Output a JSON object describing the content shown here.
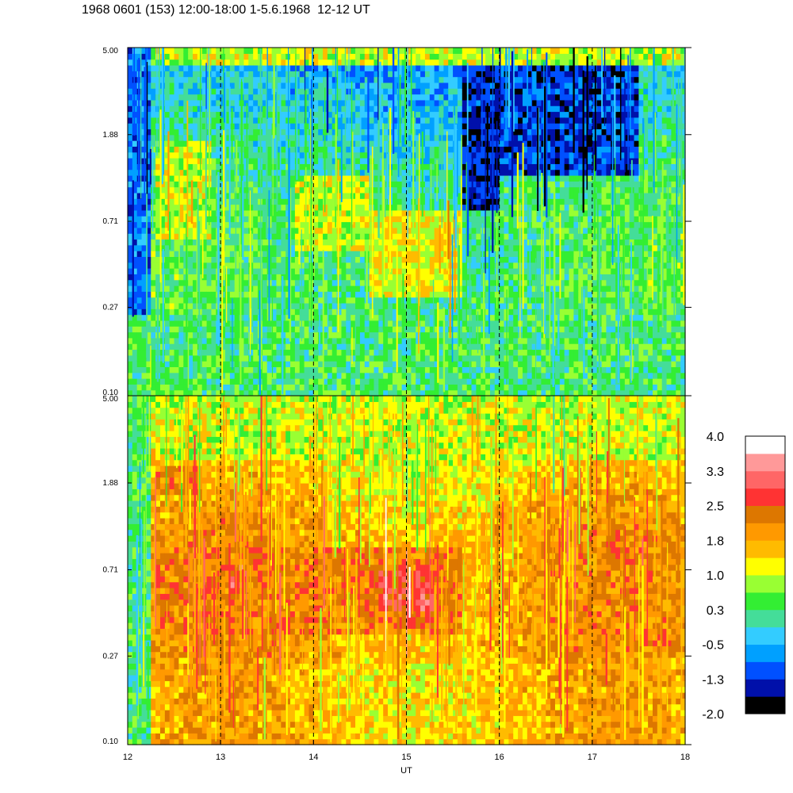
{
  "chart_data": {
    "type": "heatmap",
    "title": "1968 0601 (153) 12:00-18:00 1-5.6.1968  12-12 UT",
    "xlabel": "UT",
    "xlim": [
      12,
      18
    ],
    "x_ticks": [
      "12",
      "13",
      "14",
      "15",
      "16",
      "17",
      "18"
    ],
    "y_scale": "log",
    "ylim": [
      0.1,
      5.0
    ],
    "y_ticks": [
      "0.10",
      "0.27",
      "0.71",
      "1.88",
      "5.00"
    ],
    "dashed_hour_markers": [
      13,
      14,
      15,
      16,
      17
    ],
    "panels": [
      {
        "name": "upper",
        "tendency": "mostly green/cyan with blue streaks in upper half; yellow band near 0.3–1.0; blue column before ~12.25 UT; bright band near 5.00",
        "features": [
          {
            "x_range": [
              12.0,
              12.25
            ],
            "y_range": [
              0.1,
              5.0
            ],
            "level": -0.9
          },
          {
            "x_range": [
              12.3,
              12.9
            ],
            "y_range": [
              0.6,
              1.8
            ],
            "level": 1.0
          },
          {
            "x_range": [
              13.8,
              14.6
            ],
            "y_range": [
              0.5,
              1.2
            ],
            "level": 1.0
          },
          {
            "x_range": [
              14.6,
              15.6
            ],
            "y_range": [
              0.3,
              0.8
            ],
            "level": 1.2
          },
          {
            "x_range": [
              15.6,
              16.0
            ],
            "y_range": [
              0.8,
              4.0
            ],
            "level": -1.4
          },
          {
            "x_range": [
              16.0,
              17.5
            ],
            "y_range": [
              1.2,
              4.0
            ],
            "level": -1.2
          },
          {
            "x_range": [
              12.0,
              18.0
            ],
            "y_range": [
              0.1,
              0.25
            ],
            "level": 0.3
          }
        ]
      },
      {
        "name": "lower",
        "tendency": "mostly orange with dark-orange band near 0.35–0.9; red patches near 13.2 and 15.0 UT; yellow/green speckle near top; green column before ~12.25 UT",
        "features": [
          {
            "x_range": [
              12.0,
              12.25
            ],
            "y_range": [
              0.1,
              5.0
            ],
            "level": 0.3
          },
          {
            "x_range": [
              12.3,
              15.6
            ],
            "y_range": [
              0.35,
              0.9
            ],
            "level": 2.2
          },
          {
            "x_range": [
              12.3,
              12.8
            ],
            "y_range": [
              1.6,
              2.3
            ],
            "level": 2.2
          },
          {
            "x_range": [
              13.1,
              13.3
            ],
            "y_range": [
              0.55,
              0.75
            ],
            "level": 2.8
          },
          {
            "x_range": [
              14.7,
              15.3
            ],
            "y_range": [
              0.45,
              0.7
            ],
            "level": 2.8
          },
          {
            "x_range": [
              12.3,
              18.0
            ],
            "y_range": [
              2.5,
              5.0
            ],
            "level": 1.0
          }
        ]
      }
    ],
    "colorbar": {
      "tick_labels": [
        "4.0",
        "3.3",
        "2.5",
        "1.8",
        "1.0",
        "0.3",
        "-0.5",
        "-1.3",
        "-2.0"
      ],
      "range": [
        -2.0,
        4.0
      ],
      "colors": [
        "#000000",
        "#0010aa",
        "#0050ff",
        "#00a0ff",
        "#33ccff",
        "#44dd99",
        "#33ee33",
        "#99ff33",
        "#ffff00",
        "#ffbb00",
        "#ff9900",
        "#dd7700",
        "#ff3333",
        "#ff6666",
        "#ff9999",
        "#ffffff"
      ]
    }
  }
}
